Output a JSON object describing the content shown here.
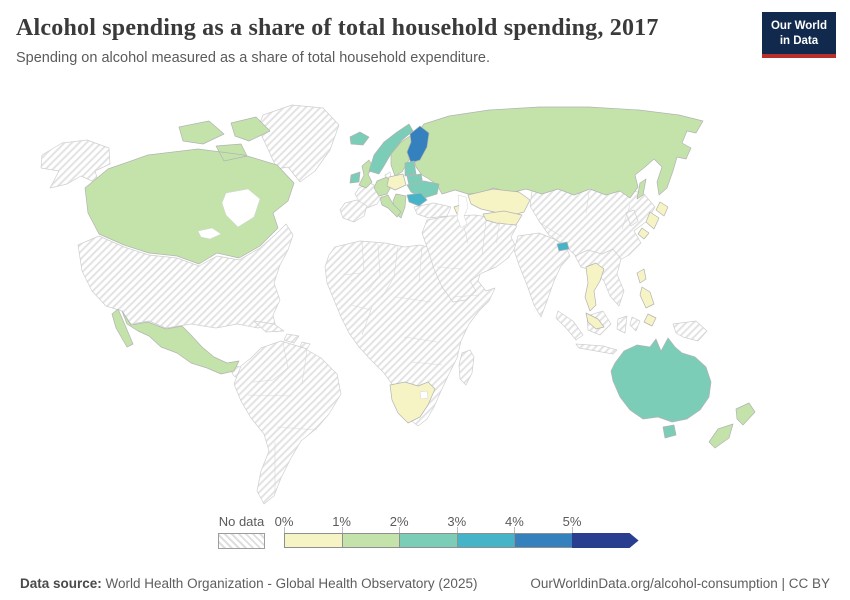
{
  "header": {
    "title": "Alcohol spending as a share of total household spending, 2017",
    "subtitle": "Spending on alcohol measured as a share of total household expenditure.",
    "logo": {
      "line1": "Our World",
      "line2": "in Data"
    }
  },
  "legend": {
    "no_data_label": "No data",
    "ticks": [
      "0%",
      "1%",
      "2%",
      "3%",
      "4%",
      "5%"
    ],
    "colors": [
      "#f6f4c5",
      "#c3e3ab",
      "#7bcdb8",
      "#46b4c8",
      "#3581bd",
      "#2a3e8f"
    ]
  },
  "footer": {
    "source_label": "Data source:",
    "source_text": " World Health Organization - Global Health Observatory (2025)",
    "right_text": "OurWorldinData.org/alcohol-consumption | CC BY"
  },
  "chart_data": {
    "type": "choropleth_map",
    "title": "Alcohol spending as a share of total household spending",
    "year": 2017,
    "unit": "share of total household expenditure",
    "bin_labels": [
      "0-1%",
      "1-2%",
      "2-3%",
      "3-4%",
      "4-5%",
      "5%+"
    ],
    "no_data_label": "No data",
    "regions": [
      {
        "id": "greenland",
        "name": "Greenland",
        "bin": null
      },
      {
        "id": "alaska",
        "name": "Alaska (United States)",
        "bin": null
      },
      {
        "id": "usa",
        "name": "United States",
        "bin": null
      },
      {
        "id": "central-america",
        "name": "Central America",
        "bin": null
      },
      {
        "id": "caribbean",
        "name": "Caribbean",
        "bin": null
      },
      {
        "id": "south-america",
        "name": "South America",
        "bin": null
      },
      {
        "id": "africa",
        "name": "Africa (most countries)",
        "bin": null
      },
      {
        "id": "madagascar",
        "name": "Madagascar",
        "bin": null
      },
      {
        "id": "denmark",
        "name": "Denmark",
        "bin": null
      },
      {
        "id": "france",
        "name": "France",
        "bin": null
      },
      {
        "id": "iberia",
        "name": "Spain & Portugal",
        "bin": null
      },
      {
        "id": "turkey",
        "name": "Turkey",
        "bin": null
      },
      {
        "id": "middle-east",
        "name": "Middle East & West Asia",
        "bin": null
      },
      {
        "id": "china",
        "name": "China & Mongolia",
        "bin": null
      },
      {
        "id": "india",
        "name": "India",
        "bin": null
      },
      {
        "id": "indochina",
        "name": "Myanmar, Laos, Vietnam & Cambodia",
        "bin": null
      },
      {
        "id": "korea",
        "name": "South Korea",
        "bin": null
      },
      {
        "id": "indonesia",
        "name": "Indonesia",
        "bin": null
      },
      {
        "id": "png",
        "name": "Papua New Guinea",
        "bin": null
      },
      {
        "id": "russia",
        "name": "Russia",
        "bin": 1
      },
      {
        "id": "canada",
        "name": "Canada",
        "bin": 1
      },
      {
        "id": "mexico",
        "name": "Mexico",
        "bin": 1
      },
      {
        "id": "south-africa",
        "name": "South Africa",
        "bin": 0
      },
      {
        "id": "iceland",
        "name": "Iceland",
        "bin": 2
      },
      {
        "id": "ireland",
        "name": "Ireland",
        "bin": 2
      },
      {
        "id": "uk",
        "name": "United Kingdom",
        "bin": 1
      },
      {
        "id": "norway",
        "name": "Norway",
        "bin": 2
      },
      {
        "id": "sweden",
        "name": "Sweden",
        "bin": 1
      },
      {
        "id": "finland",
        "name": "Finland",
        "bin": 4
      },
      {
        "id": "germany-central",
        "name": "Germany & Central Europe",
        "bin": 1
      },
      {
        "id": "poland",
        "name": "Poland",
        "bin": 0
      },
      {
        "id": "baltics",
        "name": "Baltic states",
        "bin": 2
      },
      {
        "id": "belarus",
        "name": "Belarus",
        "bin": 2
      },
      {
        "id": "ukraine",
        "name": "Ukraine",
        "bin": 2
      },
      {
        "id": "romania",
        "name": "Romania",
        "bin": 3
      },
      {
        "id": "balkans",
        "name": "Balkans & Greece",
        "bin": 1
      },
      {
        "id": "italy",
        "name": "Italy",
        "bin": 1
      },
      {
        "id": "kazakhstan",
        "name": "Kazakhstan",
        "bin": 0
      },
      {
        "id": "central-asia",
        "name": "Uzbekistan & Kyrgyzstan",
        "bin": 0
      },
      {
        "id": "azerbaijan",
        "name": "Azerbaijan",
        "bin": 0
      },
      {
        "id": "bhutan",
        "name": "Bhutan",
        "bin": 3
      },
      {
        "id": "thailand",
        "name": "Thailand",
        "bin": 0
      },
      {
        "id": "malaysia",
        "name": "Malaysia",
        "bin": 0
      },
      {
        "id": "japan",
        "name": "Japan",
        "bin": 0
      },
      {
        "id": "philippines",
        "name": "Philippines",
        "bin": 0
      },
      {
        "id": "australia",
        "name": "Australia",
        "bin": 2
      },
      {
        "id": "new-zealand",
        "name": "New Zealand",
        "bin": 1
      }
    ]
  }
}
